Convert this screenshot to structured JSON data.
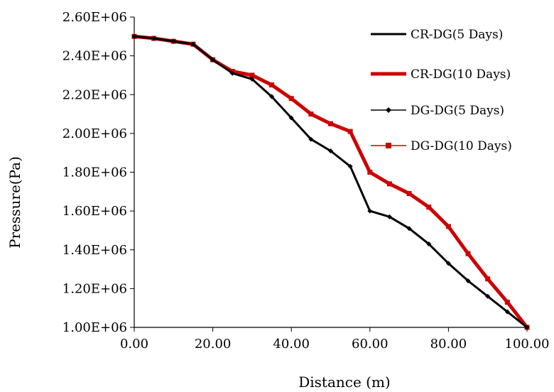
{
  "chart_data": {
    "type": "line",
    "xlabel": "Distance (m)",
    "ylabel": "Pressure(Pa)",
    "xlim": [
      0,
      100
    ],
    "ylim": [
      1000000,
      2600000
    ],
    "x_ticks": [
      0,
      20,
      40,
      60,
      80,
      100
    ],
    "x_tick_labels": [
      "0.00",
      "20.00",
      "40.00",
      "60.00",
      "80.00",
      "100.00"
    ],
    "y_ticks": [
      1000000,
      1200000,
      1400000,
      1600000,
      1800000,
      2000000,
      2200000,
      2400000,
      2600000
    ],
    "y_tick_labels": [
      "1.00E+06",
      "1.20E+06",
      "1.40E+06",
      "1.60E+06",
      "1.80E+06",
      "2.00E+06",
      "2.20E+06",
      "2.40E+06",
      "2.60E+06"
    ],
    "grid": false,
    "legend_position": "top-right",
    "x": [
      0,
      5,
      10,
      15,
      20,
      25,
      30,
      35,
      40,
      45,
      50,
      55,
      60,
      65,
      70,
      75,
      80,
      85,
      90,
      95,
      100
    ],
    "series": [
      {
        "name": "CR-DG(5 Days)",
        "color": "#000000",
        "marker": "none",
        "values": [
          2500000,
          2490000,
          2475000,
          2460000,
          2380000,
          2310000,
          2280000,
          2190000,
          2080000,
          1970000,
          1910000,
          1830000,
          1600000,
          1570000,
          1510000,
          1430000,
          1330000,
          1240000,
          1160000,
          1080000,
          1000000
        ]
      },
      {
        "name": "CR-DG(10 Days)",
        "color": "#cc0000",
        "marker": "none",
        "values": [
          2500000,
          2490000,
          2475000,
          2460000,
          2380000,
          2320000,
          2300000,
          2250000,
          2180000,
          2100000,
          2050000,
          2010000,
          1800000,
          1740000,
          1690000,
          1620000,
          1520000,
          1380000,
          1250000,
          1130000,
          1000000
        ]
      },
      {
        "name": "DG-DG(5 Days)",
        "color": "#000000",
        "marker": "diamond",
        "values": [
          2500000,
          2490000,
          2475000,
          2460000,
          2380000,
          2310000,
          2280000,
          2190000,
          2080000,
          1970000,
          1910000,
          1830000,
          1600000,
          1570000,
          1510000,
          1430000,
          1330000,
          1240000,
          1160000,
          1080000,
          1000000
        ]
      },
      {
        "name": "DG-DG(10 Days)",
        "color": "#cc0000",
        "marker": "square",
        "values": [
          2500000,
          2490000,
          2475000,
          2460000,
          2380000,
          2320000,
          2300000,
          2250000,
          2180000,
          2100000,
          2050000,
          2010000,
          1800000,
          1740000,
          1690000,
          1620000,
          1520000,
          1380000,
          1250000,
          1130000,
          1000000
        ]
      }
    ]
  }
}
